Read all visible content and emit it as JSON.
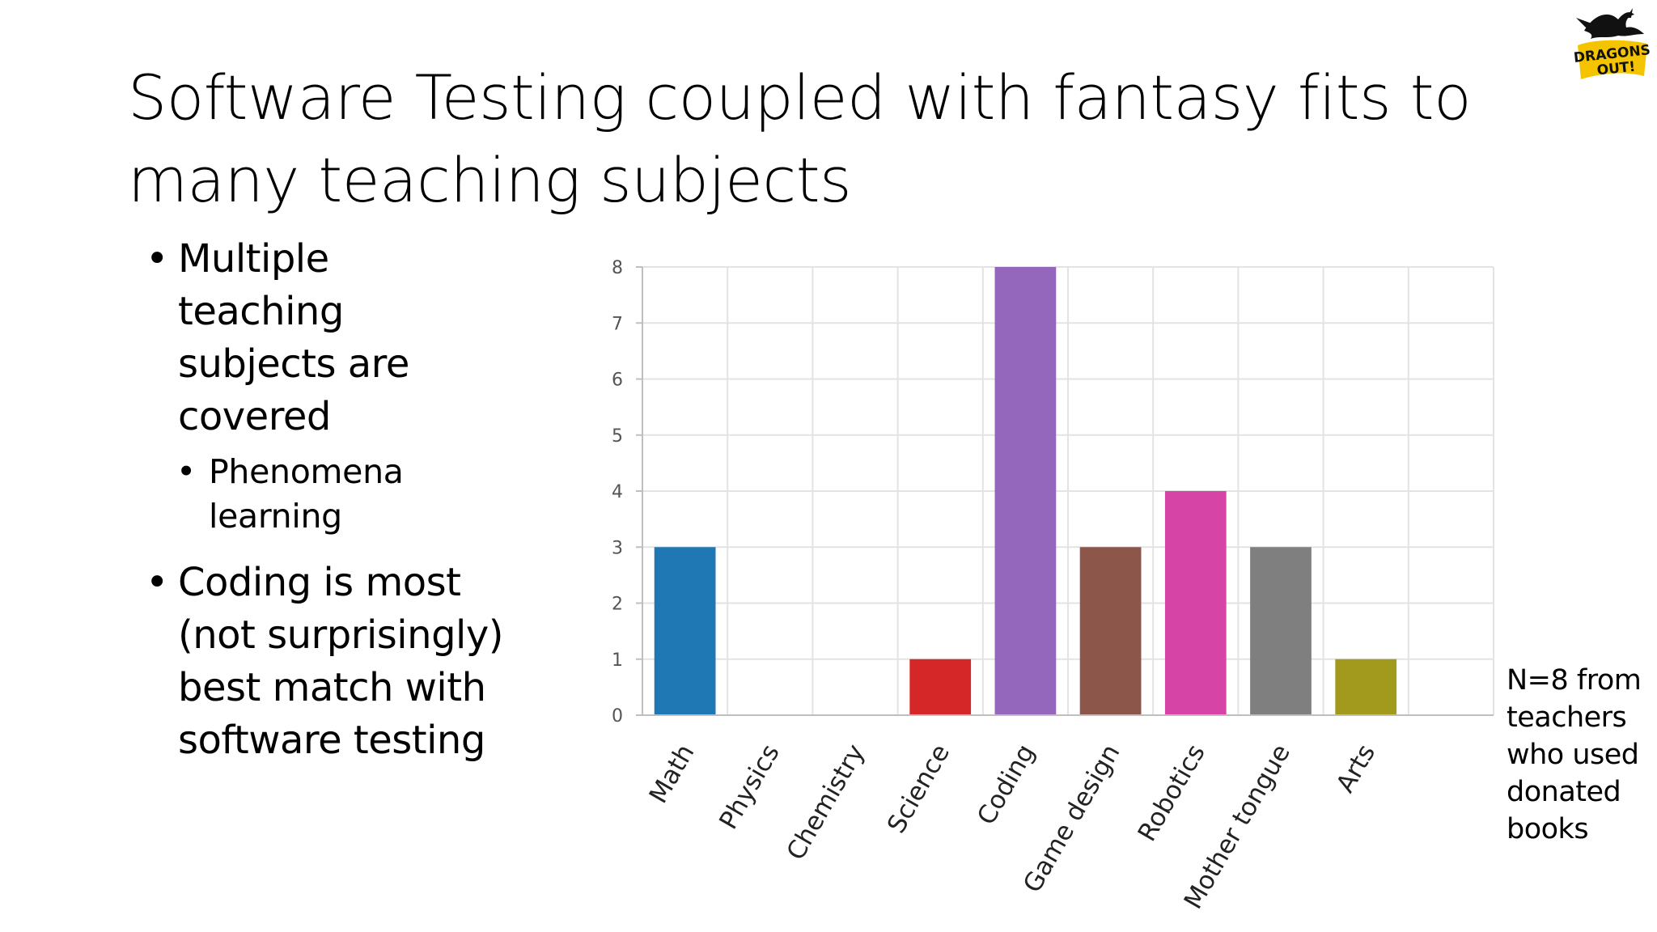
{
  "slide": {
    "title_lines": [
      "Software Testing coupled with fantasy fits to",
      "many teaching subjects"
    ],
    "bullets": [
      {
        "lines": [
          "Multiple",
          "teaching",
          "subjects are",
          "covered"
        ],
        "sub": [
          "Phenomena",
          "learning"
        ]
      },
      {
        "lines": [
          "Coding is most",
          "(not surprisingly)",
          "best match with",
          "software testing"
        ]
      }
    ],
    "note_lines": [
      "N=8 from",
      "teachers",
      "who used",
      "donated",
      "books"
    ],
    "logo": {
      "icon": "dragon-icon",
      "text_lines": [
        "DRAGONS",
        "OUT!"
      ],
      "color": "#f5c400"
    }
  },
  "chart_data": {
    "type": "bar",
    "categories": [
      "Math",
      "Physics",
      "Chemistry",
      "Science",
      "Coding",
      "Game design",
      "Robotics",
      "Mother tongue",
      "Arts"
    ],
    "values": [
      3,
      0,
      0,
      1,
      8,
      3,
      4,
      3,
      1
    ],
    "colors": [
      "#1f77b4",
      "#ff7f0e",
      "#2ca02c",
      "#d62728",
      "#9467bd",
      "#8c564b",
      "#d645a5",
      "#7f7f7f",
      "#a19a1d"
    ],
    "ylim": [
      0,
      8
    ],
    "yticks": [
      "0",
      "1",
      "2",
      "3",
      "4",
      "5",
      "6",
      "7",
      "8"
    ],
    "grid": true,
    "title": "",
    "xlabel": "",
    "ylabel": ""
  }
}
